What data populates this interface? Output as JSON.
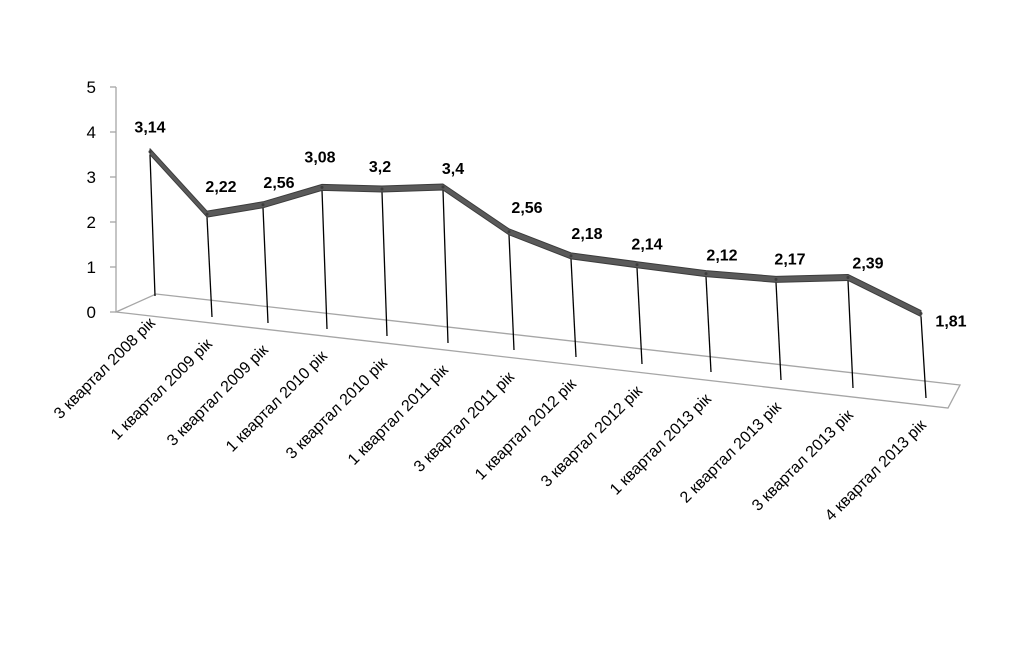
{
  "chart_data": {
    "type": "line",
    "style": "3d-ribbon-with-drop-lines",
    "title": "",
    "xlabel": "",
    "ylabel": "",
    "ylim": [
      0,
      5
    ],
    "yticks": [
      "0",
      "1",
      "2",
      "3",
      "4",
      "5"
    ],
    "grid": false,
    "legend": "none",
    "categories": [
      "3 квартал 2008 рік",
      "1 квартал 2009 рік",
      "3 квартал 2009 рік",
      "1 квартал 2010 рік",
      "3 квартал 2010 рік",
      "1 квартал 2011 рік",
      "3 квартал 2011 рік",
      "1 квартал 2012 рік",
      "3 квартал 2012 рік",
      "1 квартал 2013 рік",
      "2 квартал 2013 рік",
      "3 квартал 2013 рік",
      "4 квартал 2013 рік"
    ],
    "series": [
      {
        "values": [
          3.14,
          2.22,
          2.56,
          3.08,
          3.2,
          3.4,
          2.56,
          2.18,
          2.14,
          2.12,
          2.17,
          2.39,
          1.81
        ],
        "labels": [
          "3,14",
          "2,22",
          "2,56",
          "3,08",
          "3,2",
          "3,4",
          "2,56",
          "2,18",
          "2,14",
          "2,12",
          "2,17",
          "2,39",
          "1,81"
        ],
        "color": "#5a5a5a"
      }
    ],
    "colors": {
      "ribbon": "#5a5a5a",
      "ribbon_edge": "#3c3c3c",
      "axis": "#a6a6a6",
      "drop_line": "#000000"
    }
  }
}
